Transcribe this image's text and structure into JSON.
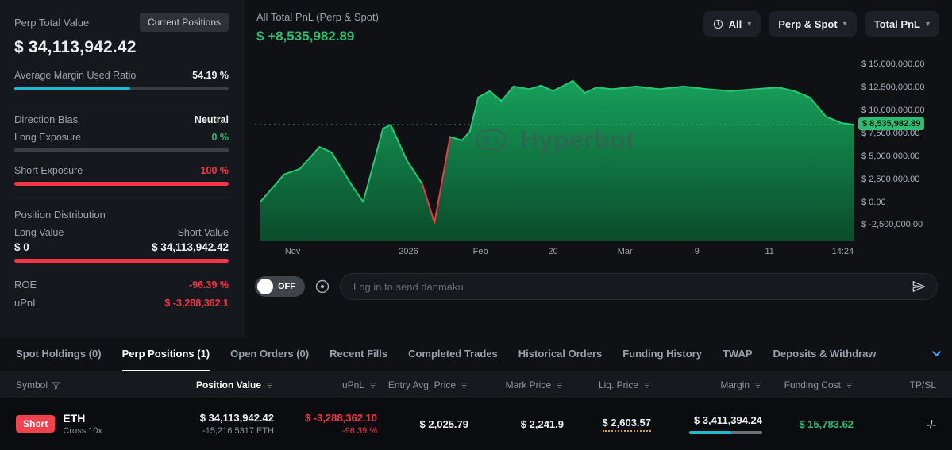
{
  "colors": {
    "background": "#0c0e11",
    "left_panel_bg": "#15181c",
    "chart_panel_bg": "#0f1115",
    "table_header_bg": "#16191e",
    "accent_cyan": "#1fb8cd",
    "green": "#2ebd70",
    "chart_line": "#26c973",
    "chart_fill_top": "#17a85e",
    "chart_fill_bottom": "#0a522e",
    "red": "#f23645",
    "text_primary": "#eceff2",
    "text_secondary": "#9aa1a9",
    "chevron_blue": "#4da3ff",
    "liq_dotted_orange": "#d69a3d"
  },
  "icons": {
    "chevron_down": "▾",
    "clock": "clock-icon",
    "send": "send-icon",
    "funnel": "filter-funnel-icon",
    "sort": "sort-icon",
    "settings": "danmaku-settings-icon"
  },
  "left_panel": {
    "title": "Perp Total Value",
    "current_positions_button": "Current Positions",
    "total_value": "$ 34,113,942.42",
    "margin_label": "Average Margin Used Ratio",
    "margin_value": "54.19 %",
    "margin_percent": 54.19,
    "direction_bias_label": "Direction Bias",
    "direction_bias_value": "Neutral",
    "long_exposure_label": "Long Exposure",
    "long_exposure_value": "0 %",
    "long_exposure_percent": 0,
    "short_exposure_label": "Short Exposure",
    "short_exposure_value": "100 %",
    "short_exposure_percent": 100,
    "position_distribution_label": "Position Distribution",
    "long_value_label": "Long Value",
    "short_value_label": "Short Value",
    "long_value": "$ 0",
    "short_value": "$ 34,113,942.42",
    "short_value_percent": 100,
    "roe_label": "ROE",
    "roe_value": "-96.39 %",
    "upnl_label": "uPnL",
    "upnl_value": "$ -3,288,362.1"
  },
  "chart_panel": {
    "title": "All Total PnL (Perp & Spot)",
    "value": "$ +8,535,982.89",
    "filters": {
      "time": "All",
      "scope": "Perp & Spot",
      "metric": "Total PnL"
    },
    "watermark": "Hyperbot"
  },
  "chart_data": {
    "type": "area",
    "title": "All Total PnL (Perp & Spot)",
    "current_value": 8535982.89,
    "current_value_label": "$ 8,535,982.89",
    "ylim": [
      -4200000,
      15900000
    ],
    "grid": false,
    "legend": "none",
    "y_axis_side": "right",
    "y_ticks": [
      {
        "label": "$ 15,000,000.00",
        "value": 15000000
      },
      {
        "label": "$ 12,500,000.00",
        "value": 12500000
      },
      {
        "label": "$ 10,000,000.00",
        "value": 10000000
      },
      {
        "label": "$ 7,500,000.00",
        "value": 7500000
      },
      {
        "label": "$ 5,000,000.00",
        "value": 5000000
      },
      {
        "label": "$ 2,500,000.00",
        "value": 2500000
      },
      {
        "label": "$ 0.00",
        "value": 0
      },
      {
        "label": "$ -2,500,000.00",
        "value": -2500000
      }
    ],
    "x_ticks": [
      {
        "label": "Nov",
        "pos": 0.062
      },
      {
        "label": "2026",
        "pos": 0.252
      },
      {
        "label": "Feb",
        "pos": 0.37
      },
      {
        "label": "20",
        "pos": 0.489
      },
      {
        "label": "Mar",
        "pos": 0.607
      },
      {
        "label": "9",
        "pos": 0.725
      },
      {
        "label": "11",
        "pos": 0.844
      },
      {
        "label": "14:24",
        "pos": 0.964
      }
    ],
    "points": [
      [
        0.009,
        100000
      ],
      [
        0.049,
        3100000
      ],
      [
        0.075,
        3700000
      ],
      [
        0.108,
        6100000
      ],
      [
        0.128,
        5500000
      ],
      [
        0.161,
        2000000
      ],
      [
        0.181,
        100000
      ],
      [
        0.214,
        8100000
      ],
      [
        0.227,
        8500000
      ],
      [
        0.254,
        4600000
      ],
      [
        0.28,
        2000000
      ],
      [
        0.3,
        -2200000
      ],
      [
        0.326,
        7200000
      ],
      [
        0.346,
        6800000
      ],
      [
        0.359,
        7800000
      ],
      [
        0.373,
        11500000
      ],
      [
        0.392,
        12200000
      ],
      [
        0.412,
        11100000
      ],
      [
        0.432,
        12700000
      ],
      [
        0.458,
        12400000
      ],
      [
        0.478,
        12800000
      ],
      [
        0.498,
        12200000
      ],
      [
        0.531,
        13300000
      ],
      [
        0.551,
        12000000
      ],
      [
        0.571,
        12600000
      ],
      [
        0.597,
        12400000
      ],
      [
        0.637,
        12700000
      ],
      [
        0.676,
        12400000
      ],
      [
        0.716,
        12700000
      ],
      [
        0.756,
        12400000
      ],
      [
        0.795,
        12200000
      ],
      [
        0.835,
        12400000
      ],
      [
        0.874,
        12600000
      ],
      [
        0.901,
        12200000
      ],
      [
        0.927,
        11500000
      ],
      [
        0.954,
        9400000
      ],
      [
        0.98,
        8700000
      ],
      [
        1.0,
        8535982.89
      ]
    ]
  },
  "danmaku": {
    "toggle_label": "OFF",
    "placeholder": "Log in to send danmaku"
  },
  "tabs": [
    {
      "label": "Spot Holdings (0)",
      "active": false
    },
    {
      "label": "Perp Positions (1)",
      "active": true
    },
    {
      "label": "Open Orders (0)",
      "active": false
    },
    {
      "label": "Recent Fills",
      "active": false
    },
    {
      "label": "Completed Trades",
      "active": false
    },
    {
      "label": "Historical Orders",
      "active": false
    },
    {
      "label": "Funding History",
      "active": false
    },
    {
      "label": "TWAP",
      "active": false
    },
    {
      "label": "Deposits & Withdraw",
      "active": false
    }
  ],
  "table": {
    "columns": [
      "Symbol",
      "Position Value",
      "uPnL",
      "Entry Avg. Price",
      "Mark Price",
      "Liq. Price",
      "Margin",
      "Funding Cost",
      "TP/SL"
    ],
    "row": {
      "side": "Short",
      "symbol": "ETH",
      "leverage": "Cross 10x",
      "position_value": "$ 34,113,942.42",
      "position_size": "-15,216.5317 ETH",
      "upnl": "$ -3,288,362.10",
      "upnl_pct": "-96.39 %",
      "entry_price": "$ 2,025.79",
      "mark_price": "$ 2,241.9",
      "liq_price": "$ 2,603.57",
      "margin": "$ 3,411,394.24",
      "margin_bar_percent": 58,
      "funding_cost": "$ 15,783.62",
      "tpsl": "-/-"
    }
  }
}
